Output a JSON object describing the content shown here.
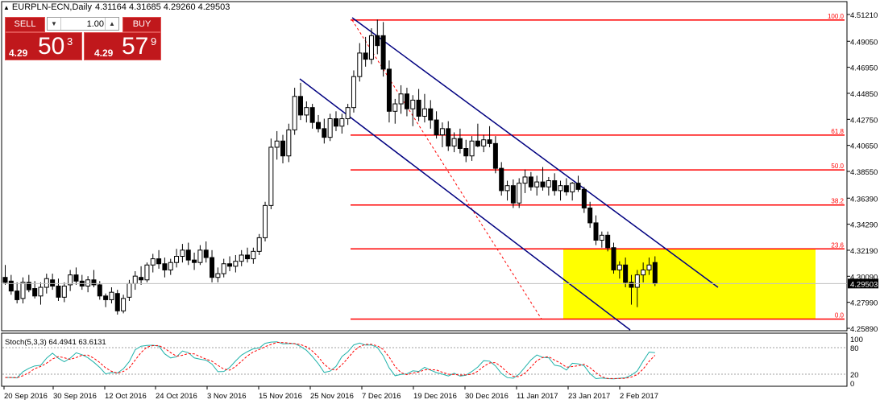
{
  "chart": {
    "symbol": "EURPLN-ECN,Daily",
    "open": "4.31164",
    "high": "4.31685",
    "low": "4.29260",
    "close": "4.29503"
  },
  "trade_panel": {
    "sell_label": "SELL",
    "buy_label": "BUY",
    "lot_size": "1.00",
    "sell_price": {
      "prefix": "4.29",
      "big": "50",
      "sup": "3"
    },
    "buy_price": {
      "prefix": "4.29",
      "big": "57",
      "sup": "9"
    }
  },
  "stoch": {
    "label": "Stoch(5,3,3) 64.4941 63.6131",
    "axis_labels": [
      "100",
      "80",
      "20",
      "0"
    ]
  },
  "colors": {
    "fib": "#ff0000",
    "channel": "#000080",
    "zone": "#ffff00",
    "stoch_main": "#20b2aa",
    "stoch_signal": "#ff0000"
  },
  "chart_data": {
    "type": "candlestick",
    "ylim": [
      4.2589,
      4.5121
    ],
    "y_ticks": [
      "4.51210",
      "4.49050",
      "4.46950",
      "4.44850",
      "4.42750",
      "4.40650",
      "4.38550",
      "4.36390",
      "4.34290",
      "4.32190",
      "4.30090",
      "4.27990",
      "4.25890"
    ],
    "current_price": "4.29503",
    "x_tick_labels": [
      "20 Sep 2016",
      "30 Sep 2016",
      "12 Oct 2016",
      "24 Oct 2016",
      "3 Nov 2016",
      "15 Nov 2016",
      "25 Nov 2016",
      "7 Dec 2016",
      "19 Dec 2016",
      "30 Dec 2016",
      "11 Jan 2017",
      "23 Jan 2017",
      "2 Feb 2017"
    ],
    "fibonacci": [
      {
        "label": "100.0",
        "price": 4.5076
      },
      {
        "label": "61.8",
        "price": 4.4148
      },
      {
        "label": "50.0",
        "price": 4.3867
      },
      {
        "label": "38.2",
        "price": 4.3584
      },
      {
        "label": "23.6",
        "price": 4.323
      },
      {
        "label": "0.0",
        "price": 4.2664
      }
    ],
    "candles": [
      [
        4.3,
        4.31,
        4.294,
        4.296
      ],
      [
        4.297,
        4.302,
        4.286,
        4.289
      ],
      [
        4.289,
        4.296,
        4.279,
        4.282
      ],
      [
        4.283,
        4.3,
        4.279,
        4.296
      ],
      [
        4.296,
        4.302,
        4.288,
        4.29
      ],
      [
        4.291,
        4.297,
        4.283,
        4.285
      ],
      [
        4.285,
        4.296,
        4.278,
        4.292
      ],
      [
        4.292,
        4.303,
        4.287,
        4.299
      ],
      [
        4.298,
        4.303,
        4.29,
        4.293
      ],
      [
        4.293,
        4.299,
        4.281,
        4.284
      ],
      [
        4.284,
        4.296,
        4.28,
        4.293
      ],
      [
        4.294,
        4.306,
        4.289,
        4.302
      ],
      [
        4.302,
        4.308,
        4.294,
        4.297
      ],
      [
        4.297,
        4.302,
        4.29,
        4.293
      ],
      [
        4.293,
        4.301,
        4.288,
        4.298
      ],
      [
        4.298,
        4.306,
        4.292,
        4.294
      ],
      [
        4.294,
        4.297,
        4.282,
        4.285
      ],
      [
        4.285,
        4.287,
        4.276,
        4.282
      ],
      [
        4.282,
        4.292,
        4.279,
        4.288
      ],
      [
        4.287,
        4.29,
        4.27,
        4.273
      ],
      [
        4.273,
        4.286,
        4.271,
        4.283
      ],
      [
        4.284,
        4.298,
        4.281,
        4.295
      ],
      [
        4.295,
        4.305,
        4.29,
        4.301
      ],
      [
        4.3,
        4.309,
        4.294,
        4.298
      ],
      [
        4.298,
        4.312,
        4.296,
        4.31
      ],
      [
        4.31,
        4.319,
        4.304,
        4.315
      ],
      [
        4.315,
        4.322,
        4.307,
        4.311
      ],
      [
        4.311,
        4.316,
        4.3,
        4.306
      ],
      [
        4.306,
        4.315,
        4.302,
        4.312
      ],
      [
        4.312,
        4.323,
        4.308,
        4.317
      ],
      [
        4.317,
        4.327,
        4.312,
        4.322
      ],
      [
        4.322,
        4.328,
        4.31,
        4.314
      ],
      [
        4.314,
        4.32,
        4.306,
        4.312
      ],
      [
        4.312,
        4.326,
        4.31,
        4.322
      ],
      [
        4.322,
        4.329,
        4.312,
        4.316
      ],
      [
        4.316,
        4.322,
        4.296,
        4.3
      ],
      [
        4.3,
        4.308,
        4.296,
        4.303
      ],
      [
        4.303,
        4.315,
        4.3,
        4.311
      ],
      [
        4.311,
        4.317,
        4.305,
        4.309
      ],
      [
        4.309,
        4.318,
        4.304,
        4.313
      ],
      [
        4.313,
        4.322,
        4.309,
        4.318
      ],
      [
        4.318,
        4.324,
        4.312,
        4.315
      ],
      [
        4.315,
        4.324,
        4.311,
        4.321
      ],
      [
        4.321,
        4.335,
        4.318,
        4.332
      ],
      [
        4.332,
        4.361,
        4.329,
        4.358
      ],
      [
        4.358,
        4.412,
        4.355,
        4.405
      ],
      [
        4.405,
        4.418,
        4.395,
        4.41
      ],
      [
        4.41,
        4.415,
        4.392,
        4.398
      ],
      [
        4.398,
        4.424,
        4.393,
        4.419
      ],
      [
        4.419,
        4.453,
        4.415,
        4.446
      ],
      [
        4.446,
        4.457,
        4.427,
        4.431
      ],
      [
        4.431,
        4.442,
        4.425,
        4.437
      ],
      [
        4.437,
        4.44,
        4.42,
        4.425
      ],
      [
        4.425,
        4.431,
        4.417,
        4.42
      ],
      [
        4.42,
        4.428,
        4.408,
        4.413
      ],
      [
        4.413,
        4.432,
        4.41,
        4.428
      ],
      [
        4.428,
        4.434,
        4.418,
        4.422
      ],
      [
        4.422,
        4.432,
        4.416,
        4.428
      ],
      [
        4.428,
        4.44,
        4.423,
        4.437
      ],
      [
        4.437,
        4.467,
        4.433,
        4.462
      ],
      [
        4.462,
        4.489,
        4.458,
        4.481
      ],
      [
        4.481,
        4.494,
        4.47,
        4.476
      ],
      [
        4.476,
        4.501,
        4.472,
        4.495
      ],
      [
        4.495,
        4.508,
        4.48,
        4.487
      ],
      [
        4.495,
        4.506,
        4.462,
        4.468
      ],
      [
        4.468,
        4.475,
        4.425,
        4.434
      ],
      [
        4.434,
        4.444,
        4.424,
        4.44
      ],
      [
        4.44,
        4.455,
        4.432,
        4.448
      ],
      [
        4.448,
        4.453,
        4.43,
        4.436
      ],
      [
        4.436,
        4.447,
        4.422,
        4.443
      ],
      [
        4.443,
        4.452,
        4.426,
        4.43
      ],
      [
        4.43,
        4.448,
        4.425,
        4.436
      ],
      [
        4.436,
        4.443,
        4.42,
        4.427
      ],
      [
        4.427,
        4.434,
        4.412,
        4.415
      ],
      [
        4.415,
        4.425,
        4.405,
        4.42
      ],
      [
        4.42,
        4.426,
        4.402,
        4.406
      ],
      [
        4.406,
        4.417,
        4.401,
        4.412
      ],
      [
        4.412,
        4.42,
        4.4,
        4.404
      ],
      [
        4.404,
        4.411,
        4.393,
        4.398
      ],
      [
        4.398,
        4.414,
        4.394,
        4.41
      ],
      [
        4.41,
        4.424,
        4.405,
        4.406
      ],
      [
        4.406,
        4.415,
        4.401,
        4.411
      ],
      [
        4.411,
        4.422,
        4.405,
        4.408
      ],
      [
        4.408,
        4.414,
        4.384,
        4.388
      ],
      [
        4.388,
        4.393,
        4.366,
        4.37
      ],
      [
        4.37,
        4.378,
        4.362,
        4.374
      ],
      [
        4.374,
        4.379,
        4.356,
        4.36
      ],
      [
        4.36,
        4.38,
        4.356,
        4.376
      ],
      [
        4.376,
        4.387,
        4.368,
        4.381
      ],
      [
        4.381,
        4.385,
        4.37,
        4.373
      ],
      [
        4.373,
        4.382,
        4.366,
        4.377
      ],
      [
        4.377,
        4.389,
        4.37,
        4.373
      ],
      [
        4.373,
        4.381,
        4.366,
        4.378
      ],
      [
        4.378,
        4.384,
        4.366,
        4.37
      ],
      [
        4.37,
        4.378,
        4.362,
        4.374
      ],
      [
        4.374,
        4.38,
        4.366,
        4.369
      ],
      [
        4.369,
        4.377,
        4.362,
        4.376
      ],
      [
        4.376,
        4.382,
        4.369,
        4.371
      ],
      [
        4.371,
        4.373,
        4.352,
        4.356
      ],
      [
        4.356,
        4.361,
        4.34,
        4.344
      ],
      [
        4.344,
        4.35,
        4.326,
        4.33
      ],
      [
        4.33,
        4.337,
        4.324,
        4.334
      ],
      [
        4.334,
        4.337,
        4.321,
        4.324
      ],
      [
        4.324,
        4.328,
        4.303,
        4.306
      ],
      [
        4.306,
        4.313,
        4.299,
        4.31
      ],
      [
        4.31,
        4.316,
        4.292,
        4.296
      ],
      [
        4.296,
        4.302,
        4.278,
        4.292
      ],
      [
        4.292,
        4.306,
        4.276,
        4.302
      ],
      [
        4.302,
        4.312,
        4.296,
        4.306
      ],
      [
        4.306,
        4.316,
        4.302,
        4.31
      ],
      [
        4.312,
        4.317,
        4.293,
        4.295
      ]
    ]
  }
}
